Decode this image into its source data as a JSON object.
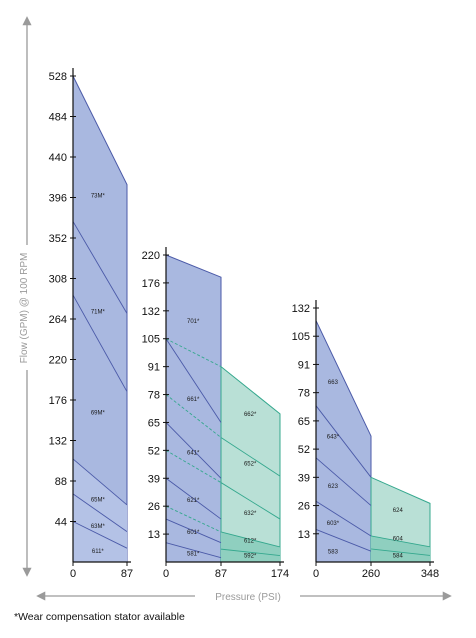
{
  "colors": {
    "blue_fill": "#a9b8e0",
    "blue_stroke": "#4b5aa8",
    "green_fill": "#b9e0d6",
    "green_stroke": "#35a88e",
    "axis_arrow": "#9a9a9a"
  },
  "y_axis_title": "Flow (GPM) @ 100 RPM",
  "x_axis_title": "Pressure (PSI)",
  "footnote": "*Wear compensation stator available",
  "chart_data": [
    {
      "type": "area",
      "panel": "left",
      "x_ticks": [
        "0",
        "87"
      ],
      "y_ticks": [
        "44",
        "88",
        "132",
        "176",
        "220",
        "264",
        "308",
        "352",
        "396",
        "440",
        "484",
        "528"
      ],
      "xlim": [
        0,
        87
      ],
      "ylim": [
        0,
        528
      ],
      "envelope": [
        {
          "x": 0,
          "y": 528
        },
        {
          "x": 87,
          "y": 410
        }
      ],
      "series": [
        {
          "name": "73M*",
          "y0": 528,
          "y1": 410,
          "region": "blue"
        },
        {
          "name": "71M*",
          "y0": 370,
          "y1": 270,
          "region": "blue"
        },
        {
          "name": "69M*",
          "y0": 290,
          "y1": 185,
          "region": "blue"
        },
        {
          "name": "65M*",
          "y0": 112,
          "y1": 62,
          "region": "blue"
        },
        {
          "name": "63M*",
          "y0": 74,
          "y1": 33,
          "region": "blue"
        },
        {
          "name": "611*",
          "y0": 44,
          "y1": 15,
          "region": "blue"
        }
      ],
      "labels": [
        {
          "text": "73M*",
          "x": 40,
          "y": 396
        },
        {
          "text": "71M*",
          "x": 40,
          "y": 270
        },
        {
          "text": "69M*",
          "x": 40,
          "y": 160
        },
        {
          "text": "65M*",
          "x": 40,
          "y": 66
        },
        {
          "text": "63M*",
          "x": 40,
          "y": 37
        },
        {
          "text": "611*",
          "x": 40,
          "y": 10
        }
      ]
    },
    {
      "type": "area",
      "panel": "middle",
      "x_ticks": [
        "0",
        "87",
        "174"
      ],
      "y_ticks": [
        "13",
        "26",
        "39",
        "52",
        "65",
        "78",
        "91",
        "105",
        "132",
        "176",
        "220"
      ],
      "y_tick_values": [
        13,
        26,
        39,
        52,
        65,
        78,
        91,
        105,
        132,
        176,
        220
      ],
      "xlim": [
        0,
        174
      ],
      "blue_series": [
        {
          "name": "701*",
          "y0": 220,
          "y1": 185
        },
        {
          "name": "661*",
          "y0": 105,
          "y1": 65
        },
        {
          "name": "641*",
          "y0": 65,
          "y1": 39
        },
        {
          "name": "621*",
          "y0": 39,
          "y1": 20
        },
        {
          "name": "601*",
          "y0": 20,
          "y1": 9
        },
        {
          "name": "581*",
          "y0": 9,
          "y1": 2
        }
      ],
      "green_series": [
        {
          "name": "662*",
          "y0": 91,
          "y1": 69
        },
        {
          "name": "652*",
          "y0": 58,
          "y1": 40
        },
        {
          "name": "632*",
          "y0": 37,
          "y1": 20
        },
        {
          "name": "612*",
          "y0": 14,
          "y1": 7
        },
        {
          "name": "592*",
          "y0": 6,
          "y1": 3
        }
      ],
      "labels": [
        {
          "text": "701*",
          "x": 43,
          "y": 120,
          "region": "blue"
        },
        {
          "text": "661*",
          "x": 43,
          "y": 75,
          "region": "blue"
        },
        {
          "text": "641*",
          "x": 43,
          "y": 50,
          "region": "blue"
        },
        {
          "text": "621*",
          "x": 43,
          "y": 28,
          "region": "blue"
        },
        {
          "text": "601*",
          "x": 43,
          "y": 13,
          "region": "blue"
        },
        {
          "text": "581*",
          "x": 43,
          "y": 3,
          "region": "blue"
        },
        {
          "text": "662*",
          "x": 130,
          "y": 68,
          "region": "green"
        },
        {
          "text": "652*",
          "x": 130,
          "y": 45,
          "region": "green"
        },
        {
          "text": "632*",
          "x": 130,
          "y": 22,
          "region": "green"
        },
        {
          "text": "612*",
          "x": 130,
          "y": 9,
          "region": "green"
        },
        {
          "text": "592*",
          "x": 130,
          "y": 2,
          "region": "green"
        }
      ]
    },
    {
      "type": "area",
      "panel": "right",
      "x_ticks": [
        "0",
        "260",
        "348"
      ],
      "y_ticks": [
        "13",
        "26",
        "39",
        "52",
        "65",
        "78",
        "91",
        "105",
        "132"
      ],
      "y_tick_values": [
        13,
        26,
        39,
        52,
        65,
        78,
        91,
        105,
        132
      ],
      "xlim": [
        0,
        348
      ],
      "blue_series": [
        {
          "name": "663",
          "y0": 120,
          "y1": 58
        },
        {
          "name": "643*",
          "y0": 72,
          "y1": 39
        },
        {
          "name": "623",
          "y0": 48,
          "y1": 26
        },
        {
          "name": "603*",
          "y0": 28,
          "y1": 12
        },
        {
          "name": "583",
          "y0": 15,
          "y1": 5
        }
      ],
      "green_series": [
        {
          "name": "624",
          "y0": 39,
          "y1": 27
        },
        {
          "name": "604",
          "y0": 12,
          "y1": 7
        },
        {
          "name": "584",
          "y0": 6,
          "y1": 3
        }
      ],
      "labels": [
        {
          "text": "663",
          "x": 80,
          "y": 82,
          "region": "blue"
        },
        {
          "text": "643*",
          "x": 80,
          "y": 57,
          "region": "blue"
        },
        {
          "text": "623",
          "x": 80,
          "y": 34,
          "region": "blue"
        },
        {
          "text": "603*",
          "x": 80,
          "y": 17,
          "region": "blue"
        },
        {
          "text": "583",
          "x": 80,
          "y": 4,
          "region": "blue"
        },
        {
          "text": "624",
          "x": 300,
          "y": 23,
          "region": "green"
        },
        {
          "text": "604",
          "x": 300,
          "y": 10,
          "region": "green"
        },
        {
          "text": "584",
          "x": 300,
          "y": 2,
          "region": "green"
        }
      ]
    }
  ]
}
